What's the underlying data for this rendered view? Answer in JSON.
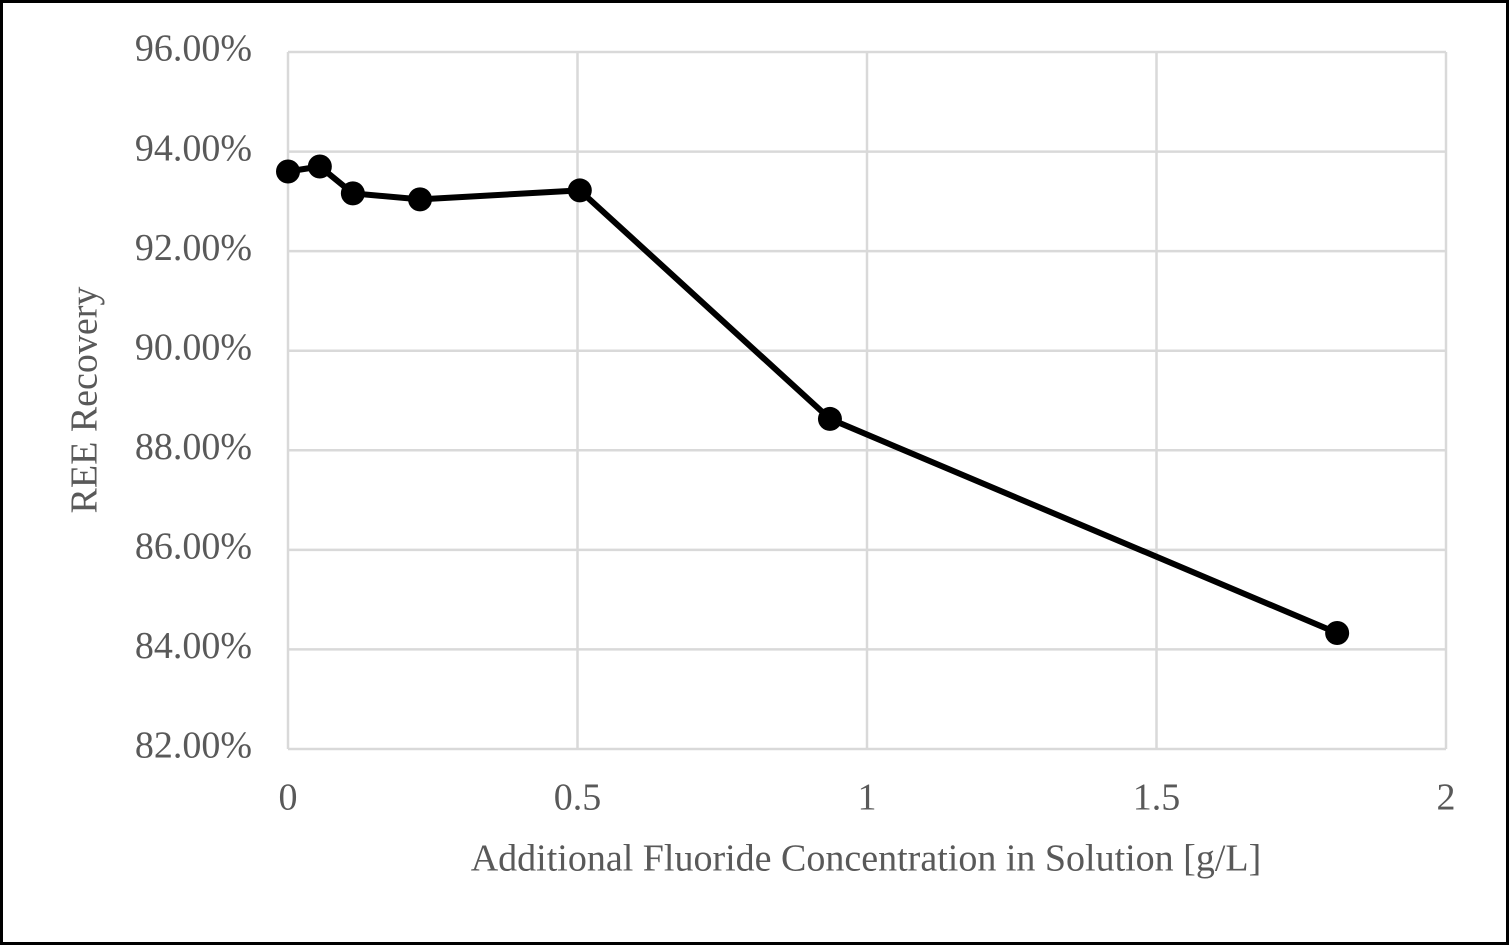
{
  "chart_data": {
    "type": "line",
    "x_label": "Additional Fluoride Concentration in Solution [g/L]",
    "y_label": "REE Recovery",
    "x": [
      0,
      0.055,
      0.112,
      0.228,
      0.504,
      0.936,
      1.812
    ],
    "series": [
      {
        "color": "#000000",
        "values": [
          93.6,
          93.7,
          93.16,
          93.04,
          93.22,
          88.63,
          84.33
        ]
      }
    ],
    "xlim": [
      0,
      2
    ],
    "xticks": [
      0,
      0.5,
      1,
      1.5,
      2
    ],
    "ylim": [
      82,
      96
    ],
    "yticks": [
      {
        "value": 82,
        "label": "82.00%"
      },
      {
        "value": 84,
        "label": "84.00%"
      },
      {
        "value": 86,
        "label": "86.00%"
      },
      {
        "value": 88,
        "label": "88.00%"
      },
      {
        "value": 90,
        "label": "90.00%"
      },
      {
        "value": 92,
        "label": "92.00%"
      },
      {
        "value": 94,
        "label": "94.00%"
      },
      {
        "value": 96,
        "label": "96.00%"
      }
    ],
    "grid": true
  }
}
